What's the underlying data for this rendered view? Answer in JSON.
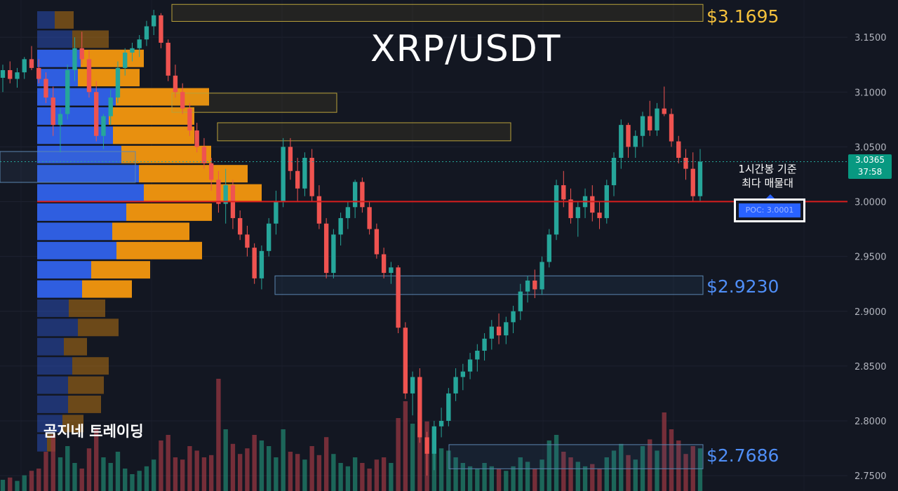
{
  "chart_data": {
    "type": "candlestick",
    "title": "XRP/USDT",
    "y_ticks": [
      "3.1500",
      "3.1000",
      "3.0500",
      "3.0000",
      "2.9500",
      "2.9000",
      "2.8500",
      "2.8000",
      "2.7500"
    ],
    "ylim": [
      2.736,
      3.184
    ],
    "current_price": "3.0365",
    "countdown": "37:58",
    "poc": {
      "label": "POC: 3.0001",
      "value": 3.0001
    },
    "annotation": [
      "1시간봉 기준",
      "최다 매물대"
    ],
    "levels": [
      {
        "label": "$3.1695",
        "value": 3.1695,
        "color": "#f5c13c"
      },
      {
        "label": "$2.9230",
        "value": 2.923,
        "color": "#4f8ef7"
      },
      {
        "label": "$2.7686",
        "value": 2.7686,
        "color": "#4f8ef7"
      }
    ],
    "zones": [
      {
        "from": 3.187,
        "to": 3.187,
        "kind": "supply"
      },
      {
        "from": 3.1645,
        "to": 3.18,
        "kind": "supply"
      },
      {
        "from": 3.0815,
        "to": 3.099,
        "kind": "supply"
      },
      {
        "from": 3.0555,
        "to": 3.072,
        "kind": "supply"
      },
      {
        "from": 2.9153,
        "to": 2.9323,
        "kind": "demand"
      },
      {
        "from": 2.7563,
        "to": 2.7783,
        "kind": "demand"
      }
    ],
    "volume_profile": [
      {
        "blue": 25,
        "orange": 27,
        "dim": true
      },
      {
        "blue": 50,
        "orange": 52,
        "dim": true
      },
      {
        "blue": 62,
        "orange": 90,
        "dim": false
      },
      {
        "blue": 58,
        "orange": 88,
        "dim": false
      },
      {
        "blue": 112,
        "orange": 133,
        "dim": false
      },
      {
        "blue": 102,
        "orange": 122,
        "dim": false
      },
      {
        "blue": 108,
        "orange": 116,
        "dim": false
      },
      {
        "blue": 120,
        "orange": 128,
        "dim": false
      },
      {
        "blue": 145,
        "orange": 155,
        "dim": false
      },
      {
        "blue": 152,
        "orange": 168,
        "dim": false
      },
      {
        "blue": 127,
        "orange": 122,
        "dim": false
      },
      {
        "blue": 107,
        "orange": 110,
        "dim": false
      },
      {
        "blue": 113,
        "orange": 122,
        "dim": false
      },
      {
        "blue": 77,
        "orange": 84,
        "dim": false
      },
      {
        "blue": 64,
        "orange": 71,
        "dim": false
      },
      {
        "blue": 45,
        "orange": 52,
        "dim": true
      },
      {
        "blue": 58,
        "orange": 58,
        "dim": true
      },
      {
        "blue": 38,
        "orange": 33,
        "dim": true
      },
      {
        "blue": 50,
        "orange": 52,
        "dim": true
      },
      {
        "blue": 44,
        "orange": 51,
        "dim": true
      },
      {
        "blue": 44,
        "orange": 47,
        "dim": true
      },
      {
        "blue": 36,
        "orange": 30,
        "dim": true
      },
      {
        "blue": 14,
        "orange": 12,
        "dim": true
      }
    ],
    "candles": [
      [
        3.113,
        3.125,
        3.1,
        3.12
      ],
      [
        3.12,
        3.128,
        3.108,
        3.112
      ],
      [
        3.112,
        3.122,
        3.104,
        3.118
      ],
      [
        3.118,
        3.132,
        3.112,
        3.13
      ],
      [
        3.13,
        3.142,
        3.12,
        3.122
      ],
      [
        3.122,
        3.13,
        3.108,
        3.112
      ],
      [
        3.112,
        3.118,
        3.09,
        3.095
      ],
      [
        3.095,
        3.105,
        3.06,
        3.07
      ],
      [
        3.07,
        3.085,
        3.045,
        3.08
      ],
      [
        3.08,
        3.125,
        3.075,
        3.12
      ],
      [
        3.12,
        3.15,
        3.11,
        3.14
      ],
      [
        3.14,
        3.155,
        3.125,
        3.13
      ],
      [
        3.13,
        3.138,
        3.095,
        3.1
      ],
      [
        3.1,
        3.11,
        3.055,
        3.06
      ],
      [
        3.06,
        3.08,
        3.048,
        3.078
      ],
      [
        3.078,
        3.102,
        3.07,
        3.095
      ],
      [
        3.095,
        3.128,
        3.09,
        3.122
      ],
      [
        3.122,
        3.14,
        3.115,
        3.136
      ],
      [
        3.136,
        3.145,
        3.128,
        3.14
      ],
      [
        3.14,
        3.152,
        3.132,
        3.148
      ],
      [
        3.148,
        3.165,
        3.142,
        3.16
      ],
      [
        3.16,
        3.175,
        3.152,
        3.17
      ],
      [
        3.17,
        3.172,
        3.14,
        3.145
      ],
      [
        3.145,
        3.148,
        3.11,
        3.115
      ],
      [
        3.115,
        3.125,
        3.095,
        3.1
      ],
      [
        3.1,
        3.108,
        3.08,
        3.085
      ],
      [
        3.085,
        3.09,
        3.06,
        3.065
      ],
      [
        3.065,
        3.072,
        3.045,
        3.05
      ],
      [
        3.05,
        3.058,
        3.03,
        3.035
      ],
      [
        3.035,
        3.04,
        3.01,
        3.02
      ],
      [
        3.02,
        3.028,
        2.99,
        2.998
      ],
      [
        2.998,
        3.03,
        2.98,
        3.015
      ],
      [
        3.015,
        3.02,
        2.975,
        2.985
      ],
      [
        2.985,
        2.992,
        2.965,
        2.97
      ],
      [
        2.97,
        2.978,
        2.95,
        2.958
      ],
      [
        2.958,
        2.962,
        2.925,
        2.93
      ],
      [
        2.93,
        2.96,
        2.92,
        2.955
      ],
      [
        2.955,
        2.985,
        2.95,
        2.98
      ],
      [
        2.98,
        3.01,
        2.97,
        3.0
      ],
      [
        3.0,
        3.058,
        2.995,
        3.05
      ],
      [
        3.05,
        3.058,
        3.02,
        3.028
      ],
      [
        3.028,
        3.04,
        3.0,
        3.012
      ],
      [
        3.012,
        3.045,
        3.005,
        3.04
      ],
      [
        3.04,
        3.048,
        3.0,
        3.005
      ],
      [
        3.005,
        3.015,
        2.975,
        2.98
      ],
      [
        2.98,
        2.985,
        2.93,
        2.935
      ],
      [
        2.935,
        2.975,
        2.93,
        2.97
      ],
      [
        2.97,
        2.99,
        2.96,
        2.985
      ],
      [
        2.985,
        3.0,
        2.975,
        2.995
      ],
      [
        2.995,
        3.02,
        2.985,
        3.018
      ],
      [
        3.018,
        3.022,
        2.99,
        2.995
      ],
      [
        2.995,
        3.0,
        2.97,
        2.975
      ],
      [
        2.975,
        2.98,
        2.948,
        2.952
      ],
      [
        2.952,
        2.958,
        2.93,
        2.935
      ],
      [
        2.935,
        2.945,
        2.925,
        2.94
      ],
      [
        2.94,
        2.942,
        2.88,
        2.885
      ],
      [
        2.885,
        2.89,
        2.82,
        2.825
      ],
      [
        2.825,
        2.845,
        2.805,
        2.84
      ],
      [
        2.84,
        2.848,
        2.78,
        2.785
      ],
      [
        2.785,
        2.79,
        2.75,
        2.77
      ],
      [
        2.77,
        2.8,
        2.755,
        2.795
      ],
      [
        2.795,
        2.812,
        2.785,
        2.8
      ],
      [
        2.8,
        2.83,
        2.795,
        2.825
      ],
      [
        2.825,
        2.848,
        2.818,
        2.84
      ],
      [
        2.84,
        2.852,
        2.828,
        2.845
      ],
      [
        2.845,
        2.862,
        2.838,
        2.856
      ],
      [
        2.856,
        2.87,
        2.845,
        2.864
      ],
      [
        2.864,
        2.88,
        2.855,
        2.875
      ],
      [
        2.875,
        2.892,
        2.865,
        2.886
      ],
      [
        2.886,
        2.898,
        2.87,
        2.878
      ],
      [
        2.878,
        2.895,
        2.87,
        2.89
      ],
      [
        2.89,
        2.905,
        2.88,
        2.9
      ],
      [
        2.9,
        2.925,
        2.892,
        2.918
      ],
      [
        2.918,
        2.932,
        2.908,
        2.928
      ],
      [
        2.928,
        2.938,
        2.912,
        2.92
      ],
      [
        2.92,
        2.95,
        2.915,
        2.945
      ],
      [
        2.945,
        2.975,
        2.94,
        2.97
      ],
      [
        2.97,
        3.02,
        2.965,
        3.015
      ],
      [
        3.015,
        3.028,
        2.995,
        3.002
      ],
      [
        3.002,
        3.012,
        2.98,
        2.985
      ],
      [
        2.985,
        3.0,
        2.968,
        2.995
      ],
      [
        2.995,
        3.012,
        2.985,
        3.005
      ],
      [
        3.005,
        3.015,
        2.982,
        2.99
      ],
      [
        2.99,
        3.0,
        2.975,
        2.985
      ],
      [
        2.985,
        3.02,
        2.98,
        3.015
      ],
      [
        3.015,
        3.045,
        3.005,
        3.04
      ],
      [
        3.04,
        3.075,
        3.03,
        3.07
      ],
      [
        3.07,
        3.072,
        3.04,
        3.05
      ],
      [
        3.05,
        3.065,
        3.04,
        3.06
      ],
      [
        3.06,
        3.082,
        3.05,
        3.078
      ],
      [
        3.078,
        3.092,
        3.06,
        3.065
      ],
      [
        3.065,
        3.09,
        3.06,
        3.085
      ],
      [
        3.085,
        3.105,
        3.078,
        3.08
      ],
      [
        3.08,
        3.085,
        3.05,
        3.055
      ],
      [
        3.055,
        3.06,
        3.035,
        3.04
      ],
      [
        3.04,
        3.048,
        3.02,
        3.03
      ],
      [
        3.03,
        3.045,
        3.0,
        3.005
      ],
      [
        3.005,
        3.048,
        3.0,
        3.0365
      ]
    ],
    "volumes": [
      0.1,
      0.12,
      0.09,
      0.14,
      0.18,
      0.2,
      0.35,
      0.5,
      0.3,
      0.4,
      0.25,
      0.2,
      0.38,
      0.55,
      0.3,
      0.25,
      0.35,
      0.2,
      0.15,
      0.18,
      0.22,
      0.28,
      0.45,
      0.5,
      0.3,
      0.28,
      0.4,
      0.36,
      0.3,
      0.32,
      1.0,
      0.55,
      0.42,
      0.33,
      0.38,
      0.5,
      0.45,
      0.4,
      0.3,
      0.55,
      0.35,
      0.33,
      0.28,
      0.4,
      0.32,
      0.48,
      0.33,
      0.25,
      0.22,
      0.3,
      0.25,
      0.2,
      0.28,
      0.3,
      0.25,
      0.65,
      0.8,
      0.6,
      0.7,
      0.62,
      0.55,
      0.38,
      0.36,
      0.3,
      0.25,
      0.22,
      0.2,
      0.25,
      0.22,
      0.2,
      0.18,
      0.22,
      0.3,
      0.26,
      0.2,
      0.28,
      0.45,
      0.5,
      0.35,
      0.3,
      0.26,
      0.22,
      0.24,
      0.2,
      0.3,
      0.36,
      0.42,
      0.32,
      0.28,
      0.4,
      0.46,
      0.36,
      0.7,
      0.55,
      0.45,
      0.33,
      0.4,
      0.38
    ]
  },
  "ui": {
    "brand": "곰지네 트레이딩"
  }
}
